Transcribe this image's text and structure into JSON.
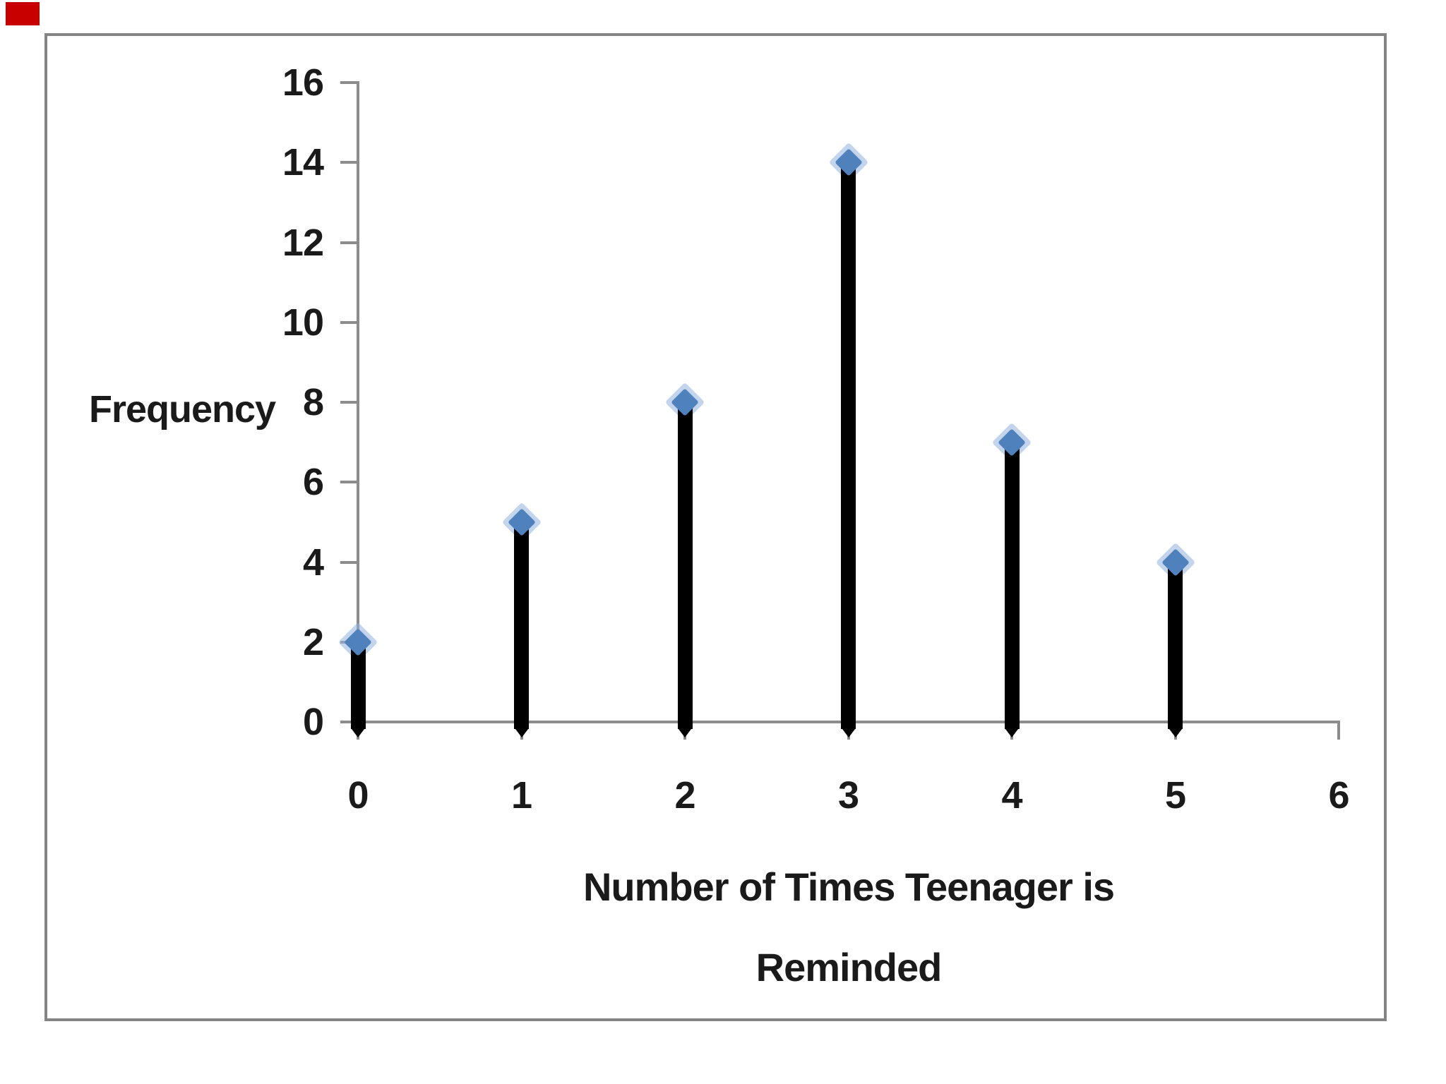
{
  "overlay": {
    "red_marker_color": "#c80000"
  },
  "chart_data": {
    "type": "stem",
    "title": "",
    "ylabel": "Frequency",
    "xlabel": "Number of Times Teenager is Reminded",
    "xlabel_lines": [
      "Number of Times Teenager is",
      "Reminded"
    ],
    "x": [
      0,
      1,
      2,
      3,
      4,
      5
    ],
    "y": [
      2,
      5,
      8,
      14,
      7,
      4
    ],
    "points": [
      {
        "x": 0,
        "frequency": 2
      },
      {
        "x": 1,
        "frequency": 5
      },
      {
        "x": 2,
        "frequency": 8
      },
      {
        "x": 3,
        "frequency": 14
      },
      {
        "x": 4,
        "frequency": 7
      },
      {
        "x": 5,
        "frequency": 4
      }
    ],
    "xticks": [
      0,
      1,
      2,
      3,
      4,
      5,
      6
    ],
    "yticks": [
      0,
      2,
      4,
      6,
      8,
      10,
      12,
      14,
      16
    ],
    "xlim": [
      0,
      6
    ],
    "ylim": [
      0,
      16
    ],
    "grid": false,
    "legend": false,
    "marker_shape": "diamond",
    "marker_color": "#4F81BD",
    "marker_halo_color": "#8FB2DC",
    "stem_color": "#000000",
    "axis_color": "#8c8c8c",
    "text_color": "#1a1a1a",
    "frame_color": "#848484"
  }
}
